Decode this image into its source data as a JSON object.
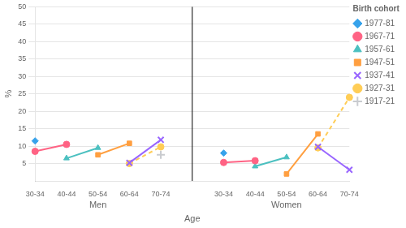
{
  "chart_data": {
    "type": "line",
    "xlabel": "Age",
    "ylabel": "%",
    "categories": [
      "30-34",
      "40-44",
      "50-54",
      "60-64",
      "70-74",
      null,
      "30-34",
      "40-44",
      "50-54",
      "60-64",
      "70-74"
    ],
    "annotations": [
      {
        "text": "Men"
      },
      {
        "text": "Women"
      }
    ],
    "ylim": [
      0,
      50
    ],
    "yticks": [
      5,
      10,
      15,
      20,
      25,
      30,
      35,
      40,
      45,
      50
    ],
    "grid": "y",
    "legend": "right",
    "legend_title": "Birth cohort",
    "series": [
      {
        "name": "1977-81",
        "marker": "diamond",
        "line_style": "none",
        "values": [
          11.5,
          null,
          null,
          null,
          null,
          null,
          8.0,
          null,
          null,
          null,
          null
        ]
      },
      {
        "name": "1967-71",
        "marker": "circle",
        "line_style": "solid",
        "values": [
          8.5,
          10.5,
          null,
          null,
          null,
          null,
          5.3,
          5.8,
          null,
          null,
          null
        ]
      },
      {
        "name": "1957-61",
        "marker": "triangle",
        "line_style": "solid",
        "values": [
          null,
          6.5,
          9.5,
          null,
          null,
          null,
          null,
          4.2,
          6.8,
          null,
          null
        ]
      },
      {
        "name": "1947-51",
        "marker": "square",
        "line_style": "solid",
        "values": [
          null,
          null,
          7.5,
          10.8,
          null,
          null,
          null,
          null,
          2.0,
          13.5,
          null
        ]
      },
      {
        "name": "1937-41",
        "marker": "x",
        "line_style": "solid",
        "values": [
          null,
          null,
          null,
          5.2,
          11.8,
          null,
          null,
          null,
          null,
          9.8,
          3.2
        ]
      },
      {
        "name": "1927-31",
        "marker": "circle",
        "line_style": "dashed",
        "values": [
          null,
          null,
          null,
          5.0,
          9.8,
          null,
          null,
          null,
          null,
          9.5,
          24.0
        ]
      },
      {
        "name": "1917-21",
        "marker": "plus",
        "line_style": "none",
        "values": [
          null,
          null,
          null,
          null,
          7.5,
          null,
          null,
          null,
          null,
          null,
          null
        ]
      }
    ]
  }
}
